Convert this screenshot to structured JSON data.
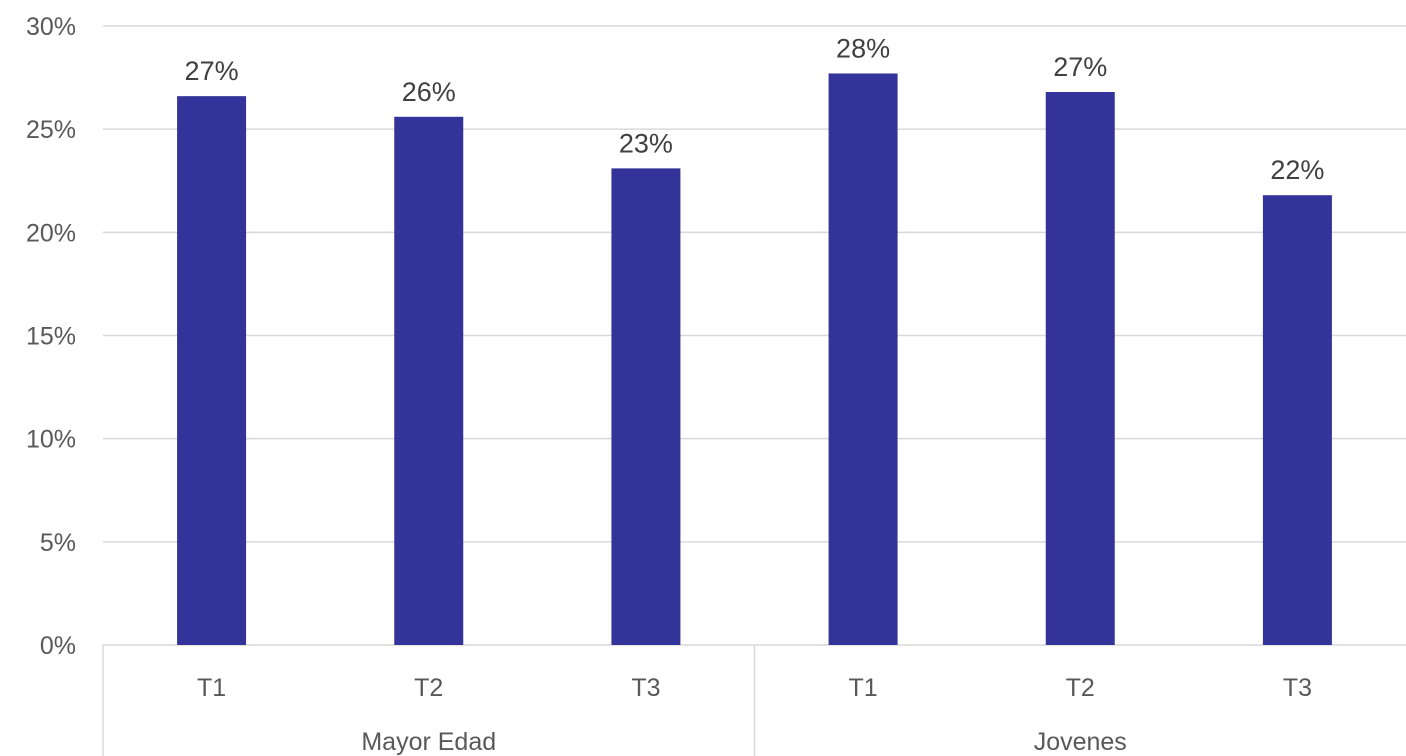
{
  "chart_data": {
    "type": "bar",
    "title": "",
    "xlabel": "",
    "ylabel": "",
    "ylim": [
      0,
      30
    ],
    "y_ticks": [
      0,
      5,
      10,
      15,
      20,
      25,
      30
    ],
    "y_tick_suffix": "%",
    "grid": true,
    "legend": "none",
    "bar_color": "#333399",
    "groups": [
      {
        "label": "Mayor Edad",
        "categories": [
          "T1",
          "T2",
          "T3"
        ],
        "values": [
          26.6,
          25.6,
          23.1
        ],
        "data_labels": [
          "27%",
          "26%",
          "23%"
        ]
      },
      {
        "label": "Jovenes",
        "categories": [
          "T1",
          "T2",
          "T3"
        ],
        "values": [
          27.7,
          26.8,
          21.8
        ],
        "data_labels": [
          "28%",
          "27%",
          "22%"
        ]
      }
    ]
  }
}
